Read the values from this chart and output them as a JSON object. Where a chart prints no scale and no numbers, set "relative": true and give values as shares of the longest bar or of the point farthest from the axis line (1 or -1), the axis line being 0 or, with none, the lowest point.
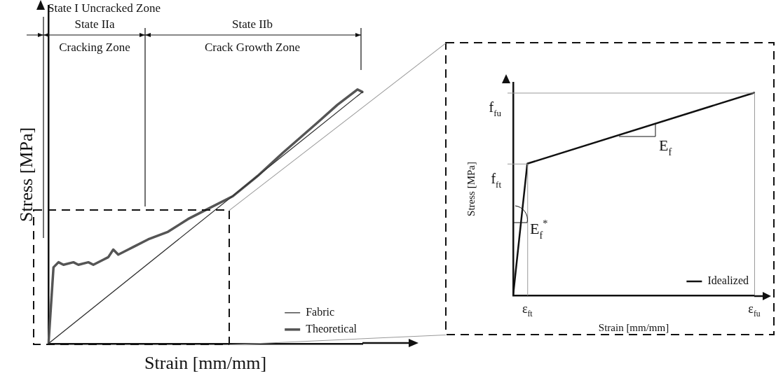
{
  "chart_data": [
    {
      "type": "line",
      "relative": true,
      "xlabel": "Strain [mm/mm]",
      "ylabel": "Stress [MPa]",
      "legend": "bottom right",
      "marker": "none",
      "categories": [
        null,
        null,
        null,
        null,
        null,
        null,
        null,
        null,
        null,
        null,
        null,
        null,
        null,
        null,
        null,
        null,
        null,
        null,
        null,
        null,
        null,
        null,
        null,
        null,
        null,
        null,
        null,
        null,
        null,
        null,
        null,
        null,
        null,
        null,
        null,
        null,
        null,
        null,
        null,
        null,
        null,
        null,
        null,
        null,
        null,
        null,
        null,
        null,
        null,
        null,
        null,
        null,
        null,
        null,
        null,
        null,
        null,
        null,
        null,
        null,
        null,
        null,
        null,
        null
      ],
      "series": [
        {
          "name": "Fabric",
          "color": "#333333",
          "values": [
            0,
            null,
            null,
            null,
            null,
            null,
            null,
            null,
            null,
            null,
            null,
            null,
            null,
            null,
            null,
            null,
            null,
            null,
            null,
            null,
            null,
            null,
            null,
            null,
            null,
            null,
            null,
            null,
            null,
            null,
            null,
            null,
            null,
            null,
            null,
            null,
            null,
            null,
            null,
            null,
            null,
            null,
            null,
            null,
            null,
            null,
            null,
            null,
            null,
            null,
            null,
            null,
            null,
            null,
            null,
            null,
            null,
            null,
            null,
            null,
            null,
            null,
            null,
            0.99
          ]
        },
        {
          "name": "Theoretical",
          "color": "#555555",
          "values": [
            0,
            0.3,
            0.32,
            0.31,
            null,
            0.32,
            0.31,
            null,
            0.32,
            0.31,
            null,
            0.33,
            0.34,
            0.37,
            0.35,
            null,
            0.37,
            0.38,
            null,
            null,
            0.41,
            null,
            null,
            null,
            0.44,
            null,
            null,
            null,
            0.49,
            null,
            null,
            null,
            0.53,
            null,
            null,
            null,
            null,
            0.58,
            null,
            null,
            null,
            null,
            0.66,
            null,
            null,
            null,
            null,
            0.75,
            null,
            null,
            null,
            null,
            null,
            null,
            0.87,
            null,
            null,
            null,
            0.94,
            null,
            null,
            null,
            1,
            0.99
          ]
        }
      ],
      "annotations": [
        "State I Uncracked Zone",
        "State IIa",
        "Cracking Zone",
        "State IIb",
        "Crack Growth Zone"
      ]
    },
    {
      "type": "line",
      "relative": true,
      "xlabel": "Strain [mm/mm]",
      "ylabel": "Stress [MPa]",
      "legend": "bottom right",
      "marker": "none",
      "categories": [
        null,
        "ε$_{ft}$",
        null,
        null,
        null,
        null,
        null,
        null,
        null,
        null,
        null,
        null,
        null,
        null,
        null,
        null,
        null,
        "ε$_{fu}$"
      ],
      "series": [
        {
          "name": "Idealized",
          "color": "#111111",
          "values": [
            0,
            0.65,
            null,
            null,
            null,
            null,
            null,
            null,
            null,
            null,
            null,
            null,
            null,
            null,
            null,
            null,
            null,
            1
          ]
        }
      ],
      "annotations": [
        "f$_{fu}$",
        "f$_{ft}$",
        "E$_{f}$",
        "E$_{f}$$^{*}$"
      ]
    }
  ]
}
